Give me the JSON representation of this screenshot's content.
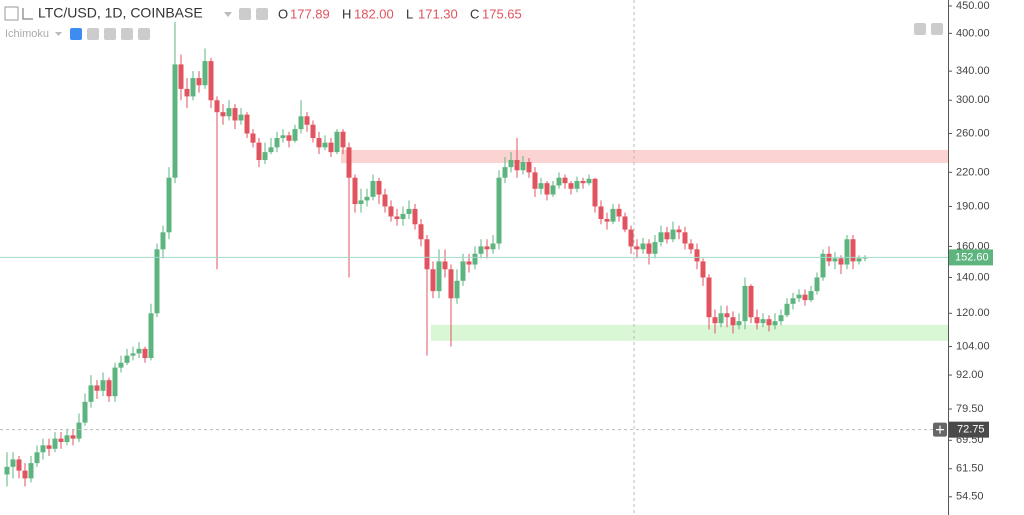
{
  "chart_data": {
    "type": "candlestick",
    "title": "LTC/USD, 1D, COINBASE",
    "indicator": "Ichimoku",
    "ohlc_header": [
      {
        "label": "O",
        "value": "177.89"
      },
      {
        "label": "H",
        "value": "182.00"
      },
      {
        "label": "L",
        "value": "171.30"
      },
      {
        "label": "C",
        "value": "175.65"
      }
    ],
    "log_scale": true,
    "up_color": "#5db47f",
    "down_color": "#e0535f",
    "ylim": [
      50.4,
      461.7
    ],
    "yticks": [
      {
        "value": 450,
        "label": "450.00"
      },
      {
        "value": 400,
        "label": "400.00"
      },
      {
        "value": 340,
        "label": "340.00"
      },
      {
        "value": 300,
        "label": "300.00"
      },
      {
        "value": 260,
        "label": "260.00"
      },
      {
        "value": 220,
        "label": "220.00"
      },
      {
        "value": 190,
        "label": "190.00"
      },
      {
        "value": 160,
        "label": "160.00"
      },
      {
        "value": 140,
        "label": "140.00"
      },
      {
        "value": 120,
        "label": "120.00"
      },
      {
        "value": 104,
        "label": "104.00"
      },
      {
        "value": 92,
        "label": "92.00"
      },
      {
        "value": 79.5,
        "label": "79.50"
      },
      {
        "value": 69.5,
        "label": "69.50"
      },
      {
        "value": 61.5,
        "label": "61.50"
      },
      {
        "value": 54.5,
        "label": "54.50"
      }
    ],
    "last_price": {
      "value": 152.6,
      "label": "152.60",
      "color": "#5db47f"
    },
    "crosshair_price": {
      "value": 72.75,
      "label": "72.75"
    },
    "zones": [
      {
        "start": 56,
        "ylim": [
          229,
          242.3
        ],
        "color": "#fcd3d3"
      },
      {
        "start": 71,
        "ylim": [
          106.6,
          114.2
        ],
        "color": "#d9f7d4"
      }
    ],
    "open": [
      60,
      62,
      64,
      61,
      59,
      63,
      66,
      68,
      67,
      70,
      69,
      71,
      70,
      75,
      82,
      88,
      86,
      90,
      84,
      95,
      97,
      100,
      101,
      103,
      99,
      120,
      158,
      170,
      215,
      350,
      315,
      305,
      330,
      320,
      355,
      300,
      285,
      280,
      290,
      275,
      282,
      260,
      250,
      232,
      240,
      245,
      255,
      258,
      252,
      265,
      280,
      270,
      255,
      245,
      250,
      240,
      262,
      245,
      215,
      192,
      195,
      198,
      212,
      200,
      190,
      182,
      180,
      184,
      188,
      176,
      165,
      145,
      132,
      150,
      145,
      128,
      138,
      150,
      148,
      155,
      160,
      158,
      162,
      215,
      225,
      232,
      222,
      230,
      220,
      205,
      210,
      200,
      208,
      215,
      210,
      205,
      212,
      210,
      214,
      190,
      180,
      178,
      188,
      182,
      172,
      160,
      158,
      162,
      155,
      163,
      170,
      165,
      172,
      170,
      162,
      158,
      150,
      140,
      118,
      115,
      120,
      118,
      114,
      116,
      135,
      118,
      115,
      117,
      114,
      116,
      119,
      125,
      128,
      130,
      127,
      132,
      140,
      155,
      150,
      152,
      148,
      165,
      150,
      152
    ],
    "high": [
      66,
      66,
      65,
      63,
      65,
      68,
      70,
      70,
      72,
      72,
      73,
      73,
      78,
      85,
      92,
      90,
      93,
      91,
      97,
      100,
      103,
      104,
      106,
      104,
      125,
      162,
      175,
      225,
      420,
      365,
      330,
      340,
      340,
      375,
      360,
      305,
      295,
      300,
      295,
      290,
      285,
      265,
      255,
      250,
      255,
      262,
      265,
      262,
      270,
      300,
      285,
      275,
      262,
      258,
      255,
      265,
      265,
      250,
      218,
      205,
      205,
      218,
      215,
      205,
      195,
      188,
      190,
      195,
      192,
      180,
      168,
      150,
      158,
      158,
      148,
      145,
      155,
      155,
      160,
      165,
      165,
      168,
      222,
      235,
      240,
      255,
      236,
      234,
      225,
      215,
      212,
      212,
      220,
      218,
      212,
      216,
      215,
      218,
      215,
      195,
      185,
      192,
      192,
      185,
      175,
      165,
      166,
      165,
      168,
      175,
      174,
      178,
      175,
      174,
      165,
      162,
      152,
      142,
      122,
      124,
      124,
      121,
      120,
      140,
      136,
      122,
      120,
      119,
      120,
      122,
      128,
      131,
      133,
      133,
      135,
      143,
      158,
      160,
      156,
      154,
      168,
      168,
      154,
      154
    ],
    "low": [
      57,
      59,
      59,
      57,
      58,
      62,
      64,
      65,
      66,
      67,
      68,
      68,
      69,
      74,
      80,
      83,
      84,
      82,
      82,
      93,
      96,
      98,
      99,
      97,
      98,
      118,
      152,
      165,
      210,
      300,
      290,
      300,
      310,
      315,
      290,
      145,
      270,
      275,
      265,
      270,
      255,
      245,
      225,
      228,
      238,
      240,
      250,
      245,
      250,
      260,
      262,
      250,
      238,
      242,
      235,
      238,
      238,
      140,
      185,
      185,
      190,
      195,
      192,
      185,
      178,
      175,
      175,
      180,
      172,
      160,
      100,
      128,
      128,
      140,
      104,
      125,
      135,
      143,
      145,
      152,
      152,
      155,
      158,
      210,
      220,
      215,
      218,
      215,
      198,
      200,
      195,
      198,
      205,
      205,
      200,
      202,
      205,
      208,
      185,
      176,
      172,
      176,
      178,
      170,
      155,
      152,
      155,
      148,
      152,
      160,
      162,
      163,
      165,
      158,
      155,
      145,
      135,
      112,
      110,
      113,
      113,
      110,
      112,
      112,
      115,
      112,
      113,
      111,
      112,
      114,
      118,
      122,
      126,
      124,
      126,
      130,
      138,
      147,
      145,
      142,
      145,
      145,
      148,
      150
    ],
    "close": [
      62,
      64,
      61,
      59,
      63,
      66,
      68,
      67,
      70,
      69,
      71,
      70,
      75,
      82,
      88,
      86,
      90,
      84,
      95,
      97,
      100,
      101,
      103,
      99,
      120,
      158,
      170,
      215,
      350,
      315,
      305,
      330,
      320,
      355,
      300,
      285,
      280,
      290,
      275,
      282,
      260,
      250,
      232,
      240,
      245,
      255,
      258,
      252,
      265,
      280,
      270,
      255,
      245,
      250,
      240,
      262,
      245,
      215,
      192,
      195,
      198,
      212,
      200,
      190,
      182,
      180,
      184,
      188,
      176,
      165,
      145,
      132,
      150,
      145,
      128,
      138,
      150,
      148,
      155,
      160,
      158,
      162,
      215,
      225,
      232,
      222,
      230,
      220,
      205,
      210,
      200,
      208,
      215,
      210,
      205,
      212,
      210,
      214,
      190,
      180,
      178,
      188,
      182,
      172,
      160,
      158,
      162,
      155,
      163,
      170,
      165,
      172,
      170,
      162,
      158,
      150,
      140,
      118,
      115,
      120,
      118,
      114,
      116,
      135,
      118,
      115,
      117,
      114,
      116,
      119,
      125,
      128,
      130,
      127,
      132,
      140,
      155,
      150,
      152,
      148,
      165,
      150,
      152,
      152.6
    ]
  }
}
